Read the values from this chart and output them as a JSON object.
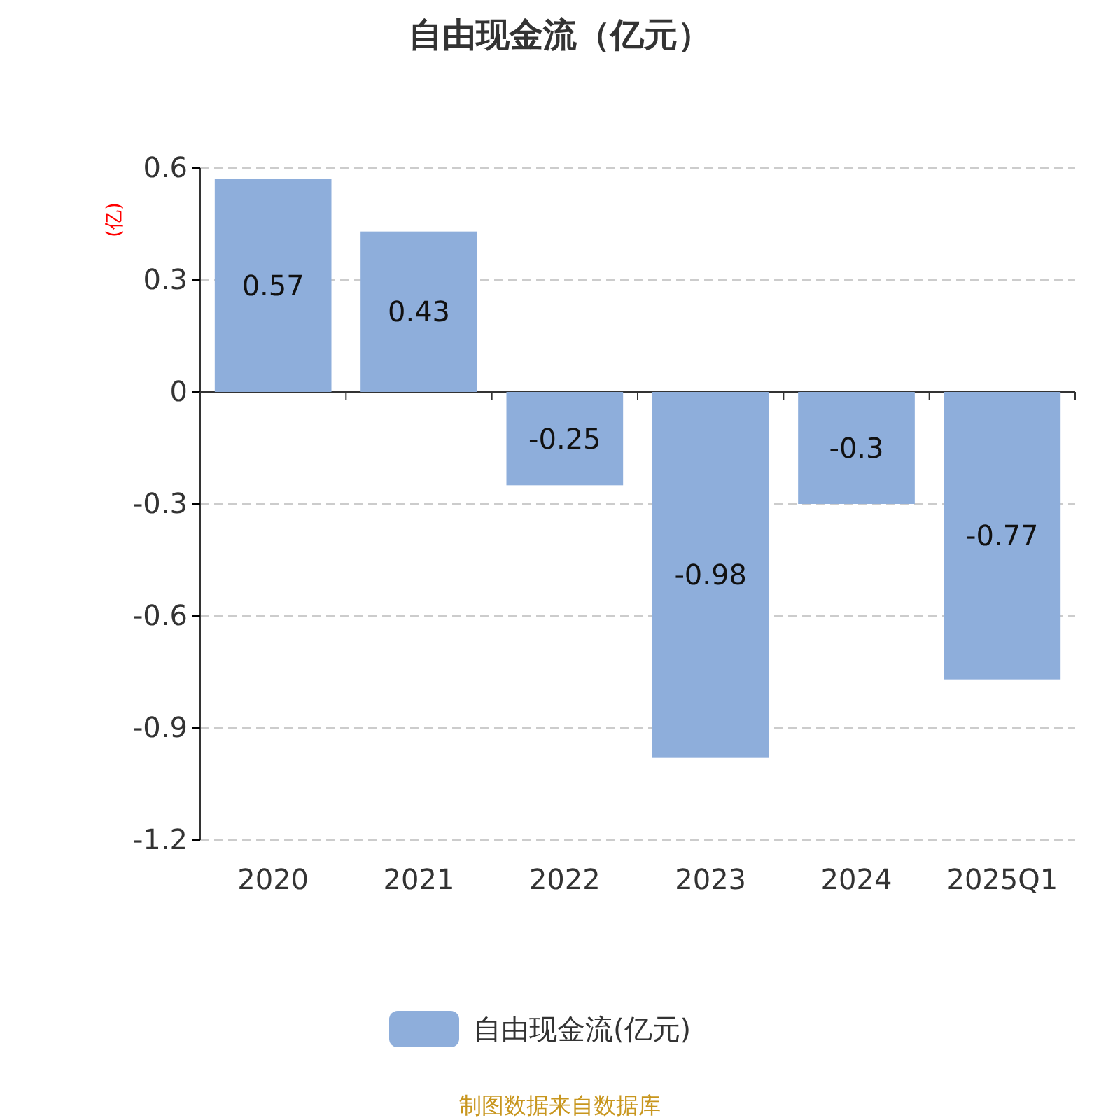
{
  "chart_data": {
    "type": "bar",
    "title": "自由现金流（亿元）",
    "ylabel": "(亿)",
    "categories": [
      "2020",
      "2021",
      "2022",
      "2023",
      "2024",
      "2025Q1"
    ],
    "series": [
      {
        "name": "自由现金流(亿元)",
        "color": "#8eaedb",
        "values": [
          0.57,
          0.43,
          -0.25,
          -0.98,
          -0.3,
          -0.77
        ]
      }
    ],
    "ylim": [
      -1.2,
      0.6
    ],
    "yticks": [
      0.6,
      0.3,
      0,
      -0.3,
      -0.6,
      -0.9,
      -1.2
    ],
    "grid": "y",
    "legend": "bottom",
    "data_labels": true,
    "annotations": [
      "制图数据来自数据库"
    ]
  }
}
